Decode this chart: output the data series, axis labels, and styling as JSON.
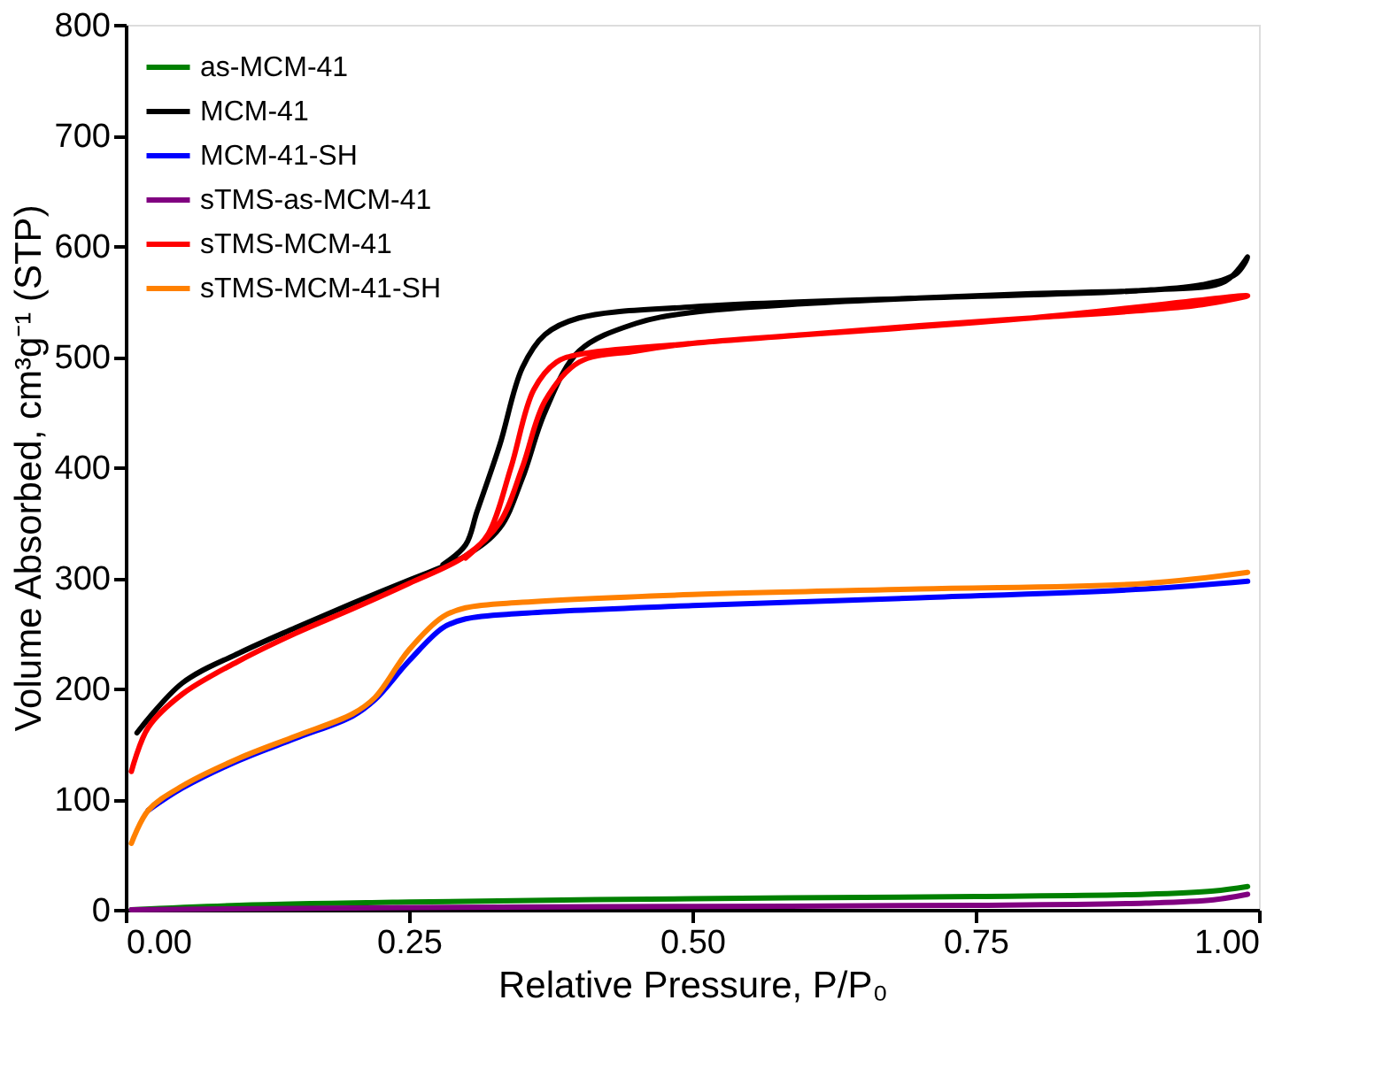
{
  "chart_data": {
    "type": "line",
    "xlabel": "Relative Pressure, P/P₀",
    "ylabel": "Volume Absorbed, cm³g⁻¹ (STP)",
    "xlim": [
      0,
      1
    ],
    "ylim": [
      0,
      800
    ],
    "xticks": [
      {
        "value": 0,
        "label": "0.00"
      },
      {
        "value": 0.25,
        "label": "0.25"
      },
      {
        "value": 0.5,
        "label": "0.50"
      },
      {
        "value": 0.75,
        "label": "0.75"
      },
      {
        "value": 1,
        "label": "1.00"
      }
    ],
    "yticks": [
      0,
      100,
      200,
      300,
      400,
      500,
      600,
      700,
      800
    ],
    "grid": false,
    "legend": "top left",
    "marker": "none",
    "line_style": "solid",
    "series": [
      {
        "name": "as-MCM-41",
        "color": "#008000",
        "x": [
          0.005,
          0.1,
          0.25,
          0.5,
          0.75,
          0.9,
          0.96,
          0.99
        ],
        "values": [
          0,
          4,
          7,
          10,
          12,
          14,
          17,
          21
        ]
      },
      {
        "name": "MCM-41",
        "color": "#000000",
        "x": [
          0.01,
          0.05,
          0.1,
          0.15,
          0.2,
          0.25,
          0.3,
          0.33,
          0.35,
          0.37,
          0.4,
          0.45,
          0.5,
          0.6,
          0.7,
          0.8,
          0.9,
          0.95,
          0.98,
          0.99,
          0.97,
          0.9,
          0.7,
          0.5,
          0.4,
          0.37,
          0.35,
          0.33,
          0.31,
          0.3,
          0.28
        ],
        "values": [
          160,
          205,
          232,
          255,
          277,
          298,
          320,
          345,
          390,
          450,
          505,
          530,
          540,
          548,
          553,
          557,
          560,
          565,
          575,
          590,
          568,
          560,
          553,
          545,
          535,
          520,
          490,
          420,
          360,
          330,
          312
        ]
      },
      {
        "name": "MCM-41-SH",
        "color": "#0000ff",
        "x": [
          0.02,
          0.05,
          0.1,
          0.15,
          0.2,
          0.22,
          0.25,
          0.28,
          0.3,
          0.35,
          0.5,
          0.7,
          0.9,
          0.99
        ],
        "values": [
          90,
          110,
          135,
          155,
          175,
          190,
          225,
          255,
          263,
          268,
          275,
          282,
          290,
          297
        ]
      },
      {
        "name": "sTMS-as-MCM-41",
        "color": "#800080",
        "x": [
          0.005,
          0.25,
          0.5,
          0.75,
          0.9,
          0.96,
          0.99
        ],
        "values": [
          0,
          2,
          3,
          4,
          6,
          9,
          14
        ]
      },
      {
        "name": "sTMS-MCM-41",
        "color": "#ff0000",
        "x": [
          0.005,
          0.02,
          0.05,
          0.1,
          0.15,
          0.2,
          0.25,
          0.3,
          0.33,
          0.35,
          0.37,
          0.4,
          0.45,
          0.5,
          0.6,
          0.7,
          0.8,
          0.9,
          0.95,
          0.99,
          0.8,
          0.5,
          0.4,
          0.38,
          0.36,
          0.34,
          0.32,
          0.3
        ],
        "values": [
          125,
          165,
          195,
          225,
          250,
          272,
          295,
          320,
          350,
          400,
          460,
          495,
          505,
          512,
          520,
          528,
          535,
          542,
          547,
          555,
          535,
          512,
          502,
          495,
          470,
          400,
          340,
          318
        ]
      },
      {
        "name": "sTMS-MCM-41-SH",
        "color": "#ff8000",
        "x": [
          0.005,
          0.02,
          0.05,
          0.1,
          0.15,
          0.2,
          0.22,
          0.25,
          0.28,
          0.3,
          0.35,
          0.5,
          0.7,
          0.9,
          0.99
        ],
        "values": [
          60,
          90,
          112,
          137,
          157,
          177,
          192,
          235,
          265,
          273,
          278,
          285,
          290,
          295,
          305
        ]
      }
    ]
  }
}
